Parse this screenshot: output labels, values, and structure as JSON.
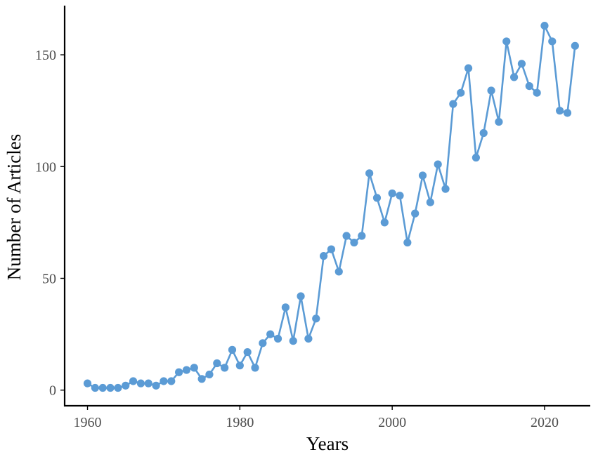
{
  "chart_data": {
    "type": "line",
    "title": "",
    "xlabel": "Years",
    "ylabel": "Number of Articles",
    "xlim": [
      1957,
      2026
    ],
    "ylim": [
      -7,
      172
    ],
    "x_ticks": [
      1960,
      1980,
      2000,
      2020
    ],
    "y_ticks": [
      0,
      50,
      100,
      150
    ],
    "grid": false,
    "legend": "none",
    "markers": true,
    "colors": {
      "series": "#5b9bd5",
      "axis": "#000000",
      "tick_label": "#4d4d4d"
    },
    "series": [
      {
        "x": [
          1960,
          1961,
          1962,
          1963,
          1964,
          1965,
          1966,
          1967,
          1968,
          1969,
          1970,
          1971,
          1972,
          1973,
          1974,
          1975,
          1976,
          1977,
          1978,
          1979,
          1980,
          1981,
          1982,
          1983,
          1984,
          1985,
          1986,
          1987,
          1988,
          1989,
          1990,
          1991,
          1992,
          1993,
          1994,
          1995,
          1996,
          1997,
          1998,
          1999,
          2000,
          2001,
          2002,
          2003,
          2004,
          2005,
          2006,
          2007,
          2008,
          2009,
          2010,
          2011,
          2012,
          2013,
          2014,
          2015,
          2016,
          2017,
          2018,
          2019,
          2020,
          2021,
          2022,
          2023,
          2024
        ],
        "values": [
          3,
          1,
          1,
          1,
          1,
          2,
          4,
          3,
          3,
          2,
          4,
          4,
          8,
          9,
          10,
          5,
          7,
          12,
          10,
          18,
          11,
          17,
          10,
          21,
          25,
          23,
          37,
          22,
          42,
          23,
          32,
          60,
          63,
          53,
          69,
          66,
          69,
          97,
          86,
          75,
          88,
          87,
          66,
          79,
          96,
          84,
          101,
          90,
          128,
          133,
          144,
          104,
          115,
          134,
          120,
          156,
          140,
          146,
          136,
          133,
          163,
          156,
          125,
          124,
          154
        ]
      }
    ]
  }
}
